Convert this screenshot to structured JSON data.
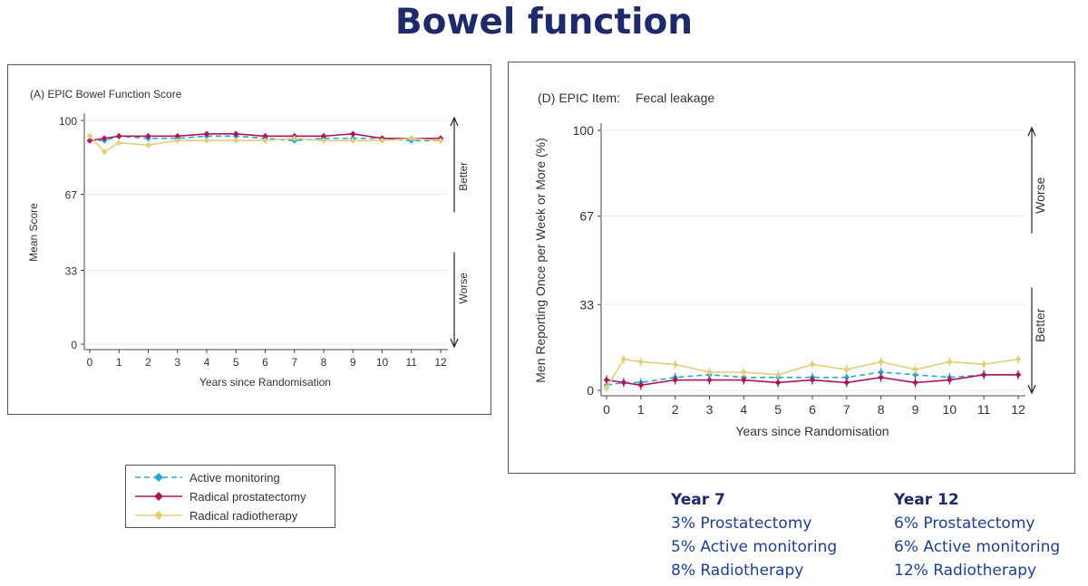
{
  "slide": {
    "title": "Bowel function"
  },
  "colors": {
    "active_monitoring": "#2aa7c9",
    "radical_prostatectomy": "#b0145a",
    "radical_radiotherapy": "#e0cf7a",
    "title": "#1f2a6b",
    "summary_text": "#1f3f8f"
  },
  "chart_data": [
    {
      "type": "line",
      "title": "(A) EPIC Bowel Function Score",
      "xlabel": "Years since Randomisation",
      "ylabel": "Mean Score",
      "x": [
        0,
        0.5,
        1,
        2,
        3,
        4,
        5,
        6,
        7,
        8,
        9,
        10,
        11,
        12
      ],
      "xticks": [
        "0",
        "1",
        "2",
        "3",
        "4",
        "5",
        "6",
        "7",
        "8",
        "9",
        "10",
        "11",
        "12"
      ],
      "yticks": [
        "0",
        "33",
        "67",
        "100"
      ],
      "ylim": [
        0,
        100
      ],
      "grid": true,
      "annotations": {
        "up": "Better",
        "down": "Worse"
      },
      "series": [
        {
          "name": "Active monitoring",
          "color_key": "active_monitoring",
          "style": "dashed",
          "values": [
            91,
            91,
            93,
            92,
            92,
            93,
            93,
            92,
            91,
            92,
            92,
            92,
            91,
            91
          ]
        },
        {
          "name": "Radical prostatectomy",
          "color_key": "radical_prostatectomy",
          "style": "solid",
          "values": [
            91,
            92,
            93,
            93,
            93,
            94,
            94,
            93,
            93,
            93,
            94,
            92,
            92,
            92
          ]
        },
        {
          "name": "Radical radiotherapy",
          "color_key": "radical_radiotherapy",
          "style": "solid",
          "values": [
            93,
            86,
            90,
            89,
            91,
            91,
            91,
            91,
            92,
            91,
            91,
            91,
            92,
            91
          ]
        }
      ]
    },
    {
      "type": "line",
      "title": "(D) EPIC Item:",
      "subtitle": "Fecal leakage",
      "xlabel": "Years since Randomisation",
      "ylabel": "Men Reporting Once per Week or More (%)",
      "x": [
        0,
        0.5,
        1,
        2,
        3,
        4,
        5,
        6,
        7,
        8,
        9,
        10,
        11,
        12
      ],
      "xticks": [
        "0",
        "1",
        "2",
        "3",
        "4",
        "5",
        "6",
        "7",
        "8",
        "9",
        "10",
        "11",
        "12"
      ],
      "yticks": [
        "0",
        "33",
        "67",
        "100"
      ],
      "ylim": [
        0,
        100
      ],
      "grid": true,
      "annotations": {
        "up": "Worse",
        "down": "Better"
      },
      "series": [
        {
          "name": "Active monitoring",
          "color_key": "active_monitoring",
          "style": "dashed",
          "values": [
            2,
            3,
            3,
            5,
            6,
            5,
            5,
            5,
            5,
            7,
            6,
            5,
            6,
            6
          ]
        },
        {
          "name": "Radical prostatectomy",
          "color_key": "radical_prostatectomy",
          "style": "solid",
          "values": [
            4,
            3,
            2,
            4,
            4,
            4,
            3,
            4,
            3,
            5,
            3,
            4,
            6,
            6
          ]
        },
        {
          "name": "Radical radiotherapy",
          "color_key": "radical_radiotherapy",
          "style": "solid",
          "values": [
            1,
            12,
            11,
            10,
            7,
            7,
            6,
            10,
            8,
            11,
            8,
            11,
            10,
            12
          ]
        }
      ]
    }
  ],
  "legend": {
    "items": [
      {
        "label": "Active monitoring",
        "color_key": "active_monitoring",
        "style": "dashed"
      },
      {
        "label": "Radical prostatectomy",
        "color_key": "radical_prostatectomy",
        "style": "solid"
      },
      {
        "label": "Radical radiotherapy",
        "color_key": "radical_radiotherapy",
        "style": "solid"
      }
    ]
  },
  "summary": {
    "year7": {
      "heading": "Year 7",
      "lines": [
        "3% Prostatectomy",
        "5% Active monitoring",
        "8% Radiotherapy"
      ]
    },
    "year12": {
      "heading": "Year 12",
      "lines": [
        "6% Prostatectomy",
        "6% Active monitoring",
        "12% Radiotherapy"
      ]
    }
  }
}
